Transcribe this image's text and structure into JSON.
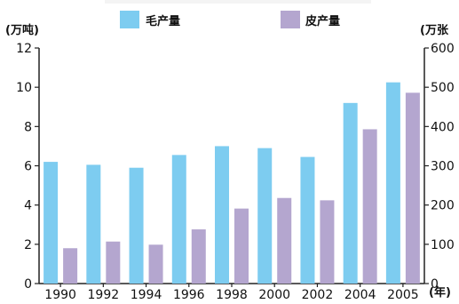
{
  "chart_data": {
    "type": "bar",
    "categories": [
      "1990",
      "1992",
      "1994",
      "1996",
      "1998",
      "2000",
      "2002",
      "2004",
      "2005"
    ],
    "series": [
      {
        "name": "毛产量",
        "axis": "left",
        "values": [
          6.2,
          6.05,
          5.9,
          6.55,
          7.0,
          6.9,
          6.45,
          9.2,
          10.25
        ]
      },
      {
        "name": "皮产量",
        "axis": "right",
        "values": [
          90,
          107,
          99,
          138,
          191,
          218,
          212,
          393,
          486
        ]
      }
    ],
    "title": "",
    "left_axis": {
      "unit_label": "(万吨)",
      "ylim": [
        0,
        12
      ],
      "ticks": [
        "0",
        "2",
        "4",
        "6",
        "8",
        "10",
        "12"
      ]
    },
    "right_axis": {
      "unit_label": "(万张",
      "ylim": [
        0,
        600
      ],
      "ticks": [
        "0",
        "100",
        "200",
        "300",
        "400",
        "500",
        "600"
      ]
    },
    "x_axis_unit": "(年)",
    "legend_placement": "top",
    "grid": false,
    "colors": {
      "毛产量": "#7dccf0",
      "皮产量": "#b4a6cf",
      "axis": "#222222"
    }
  }
}
